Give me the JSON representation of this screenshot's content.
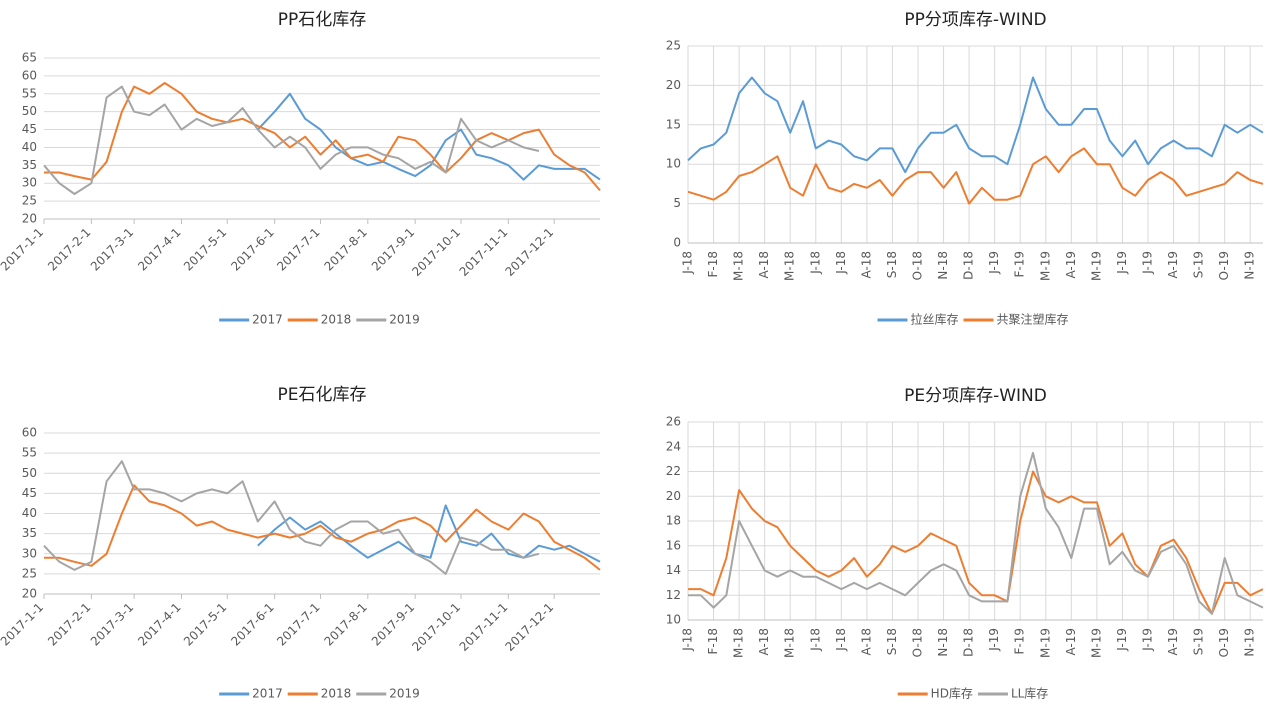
{
  "chart_data": [
    {
      "type": "line",
      "title": "PP石化库存",
      "x": [
        "2017-1-1",
        "2017-1-11",
        "2017-1-21",
        "2017-2-1",
        "2017-2-11",
        "2017-2-21",
        "2017-3-1",
        "2017-3-11",
        "2017-3-21",
        "2017-4-1",
        "2017-4-11",
        "2017-4-21",
        "2017-5-1",
        "2017-5-11",
        "2017-5-21",
        "2017-6-1",
        "2017-6-11",
        "2017-6-21",
        "2017-7-1",
        "2017-7-11",
        "2017-7-21",
        "2017-8-1",
        "2017-8-11",
        "2017-8-21",
        "2017-9-1",
        "2017-9-11",
        "2017-9-21",
        "2017-10-1",
        "2017-10-11",
        "2017-10-21",
        "2017-11-1",
        "2017-11-11",
        "2017-11-21",
        "2017-12-1",
        "2017-12-11",
        "2017-12-21",
        "2017-12-31"
      ],
      "xlim": [
        "2017-1-1",
        "2017-12-31"
      ],
      "xticks": [
        "2017-1-1",
        "2017-2-1",
        "2017-3-1",
        "2017-4-1",
        "2017-5-1",
        "2017-6-1",
        "2017-7-1",
        "2017-8-1",
        "2017-9-1",
        "2017-10-1",
        "2017-11-1",
        "2017-12-1"
      ],
      "ylim": [
        20,
        65
      ],
      "yticks": [
        20,
        25,
        30,
        35,
        40,
        45,
        50,
        55,
        60,
        65
      ],
      "grid": true,
      "legend": "bottom",
      "series": [
        {
          "name": "2017",
          "color": "#5b9bd5",
          "values": [
            null,
            null,
            null,
            null,
            null,
            null,
            null,
            null,
            null,
            null,
            null,
            null,
            null,
            null,
            45,
            50,
            55,
            48,
            45,
            40,
            37,
            35,
            36,
            34,
            32,
            35,
            42,
            45,
            38,
            37,
            35,
            31,
            35,
            34,
            34,
            34,
            31
          ]
        },
        {
          "name": "2018",
          "color": "#ed7d31",
          "values": [
            33,
            33,
            32,
            31,
            36,
            50,
            57,
            55,
            58,
            55,
            50,
            48,
            47,
            48,
            46,
            44,
            40,
            43,
            38,
            42,
            37,
            38,
            36,
            43,
            42,
            38,
            33,
            37,
            42,
            44,
            42,
            44,
            45,
            38,
            35,
            33,
            28
          ]
        },
        {
          "name": "2019",
          "color": "#a5a5a5",
          "values": [
            35,
            30,
            27,
            30,
            54,
            57,
            50,
            49,
            52,
            45,
            48,
            46,
            47,
            51,
            45,
            40,
            43,
            40,
            34,
            38,
            40,
            40,
            38,
            37,
            34,
            36,
            33,
            48,
            42,
            40,
            42,
            40,
            39,
            null,
            null,
            null,
            null
          ]
        }
      ]
    },
    {
      "type": "line",
      "title": "PP分项库存-WIND",
      "categories": [
        "J-18",
        null,
        "F-18",
        null,
        "M-18",
        null,
        "A-18",
        null,
        "M-18",
        null,
        "J-18",
        null,
        "J-18",
        null,
        "A-18",
        null,
        "S-18",
        null,
        "O-18",
        null,
        "N-18",
        null,
        "D-18",
        null,
        "J-19",
        null,
        "F-19",
        null,
        "M-19",
        null,
        "A-19",
        null,
        "M-19",
        null,
        "J-19",
        null,
        "J-19",
        null,
        "A-19",
        null,
        "S-19",
        null,
        "O-19",
        null,
        "N-19",
        null
      ],
      "ylim": [
        0,
        25
      ],
      "yticks": [
        0,
        5,
        10,
        15,
        20,
        25
      ],
      "grid": true,
      "xgrid": true,
      "legend": "bottom",
      "series": [
        {
          "name": "拉丝库存",
          "color": "#5b9bd5",
          "values": [
            10.5,
            12,
            12.5,
            14,
            19,
            21,
            19,
            18,
            14,
            18,
            12,
            13,
            12.5,
            11,
            10.5,
            12,
            12,
            9,
            12,
            14,
            14,
            15,
            12,
            11,
            11,
            10,
            15,
            21,
            17,
            15,
            15,
            17,
            17,
            13,
            11,
            13,
            10,
            12,
            13,
            12,
            12,
            11,
            15,
            14,
            15,
            14
          ]
        },
        {
          "name": "共聚注塑库存",
          "color": "#ed7d31",
          "values": [
            6.5,
            6,
            5.5,
            6.5,
            8.5,
            9,
            10,
            11,
            7,
            6,
            10,
            7,
            6.5,
            7.5,
            7,
            8,
            6,
            8,
            9,
            9,
            7,
            9,
            5,
            7,
            5.5,
            5.5,
            6,
            10,
            11,
            9,
            11,
            12,
            10,
            10,
            7,
            6,
            8,
            9,
            8,
            6,
            6.5,
            7,
            7.5,
            9,
            8,
            7.5
          ]
        }
      ]
    },
    {
      "type": "line",
      "title": "PE石化库存",
      "x": [
        "2017-1-1",
        "2017-1-11",
        "2017-1-21",
        "2017-2-1",
        "2017-2-11",
        "2017-2-21",
        "2017-3-1",
        "2017-3-11",
        "2017-3-21",
        "2017-4-1",
        "2017-4-11",
        "2017-4-21",
        "2017-5-1",
        "2017-5-11",
        "2017-5-21",
        "2017-6-1",
        "2017-6-11",
        "2017-6-21",
        "2017-7-1",
        "2017-7-11",
        "2017-7-21",
        "2017-8-1",
        "2017-8-11",
        "2017-8-21",
        "2017-9-1",
        "2017-9-11",
        "2017-9-21",
        "2017-10-1",
        "2017-10-11",
        "2017-10-21",
        "2017-11-1",
        "2017-11-11",
        "2017-11-21",
        "2017-12-1",
        "2017-12-11",
        "2017-12-21",
        "2017-12-31"
      ],
      "xlim": [
        "2017-1-1",
        "2017-12-31"
      ],
      "xticks": [
        "2017-1-1",
        "2017-2-1",
        "2017-3-1",
        "2017-4-1",
        "2017-5-1",
        "2017-6-1",
        "2017-7-1",
        "2017-8-1",
        "2017-9-1",
        "2017-10-1",
        "2017-11-1",
        "2017-12-1"
      ],
      "ylim": [
        20,
        60
      ],
      "yticks": [
        20,
        25,
        30,
        35,
        40,
        45,
        50,
        55,
        60
      ],
      "grid": true,
      "legend": "bottom",
      "series": [
        {
          "name": "2017",
          "color": "#5b9bd5",
          "values": [
            null,
            null,
            null,
            null,
            null,
            null,
            null,
            null,
            null,
            null,
            null,
            null,
            null,
            null,
            32,
            36,
            39,
            36,
            38,
            35,
            32,
            29,
            31,
            33,
            30,
            29,
            42,
            33,
            32,
            35,
            30,
            29,
            32,
            31,
            32,
            30,
            28
          ]
        },
        {
          "name": "2018",
          "color": "#ed7d31",
          "values": [
            29,
            29,
            28,
            27,
            30,
            40,
            47,
            43,
            42,
            40,
            37,
            38,
            36,
            35,
            34,
            35,
            34,
            35,
            37,
            34,
            33,
            35,
            36,
            38,
            39,
            37,
            33,
            37,
            41,
            38,
            36,
            40,
            38,
            33,
            31,
            29,
            26
          ]
        },
        {
          "name": "2019",
          "color": "#a5a5a5",
          "values": [
            32,
            28,
            26,
            28,
            48,
            53,
            46,
            46,
            45,
            43,
            45,
            46,
            45,
            48,
            38,
            43,
            36,
            33,
            32,
            36,
            38,
            38,
            35,
            36,
            30,
            28,
            25,
            34,
            33,
            31,
            31,
            29,
            30,
            null,
            null,
            null,
            null
          ]
        }
      ]
    },
    {
      "type": "line",
      "title": "PE分项库存-WIND",
      "categories": [
        "J-18",
        null,
        "F-18",
        null,
        "M-18",
        null,
        "A-18",
        null,
        "M-18",
        null,
        "J-18",
        null,
        "J-18",
        null,
        "A-18",
        null,
        "S-18",
        null,
        "O-18",
        null,
        "N-18",
        null,
        "D-18",
        null,
        "J-19",
        null,
        "F-19",
        null,
        "M-19",
        null,
        "A-19",
        null,
        "M-19",
        null,
        "J-19",
        null,
        "J-19",
        null,
        "A-19",
        null,
        "S-19",
        null,
        "O-19",
        null,
        "N-19",
        null
      ],
      "ylim": [
        10,
        26
      ],
      "yticks": [
        10,
        12,
        14,
        16,
        18,
        20,
        22,
        24,
        26
      ],
      "grid": true,
      "xgrid": true,
      "legend": "bottom",
      "series": [
        {
          "name": "HD库存",
          "color": "#ed7d31",
          "values": [
            12.5,
            12.5,
            12,
            15,
            20.5,
            19,
            18,
            17.5,
            16,
            15,
            14,
            13.5,
            14,
            15,
            13.5,
            14.5,
            16,
            15.5,
            16,
            17,
            16.5,
            16,
            13,
            12,
            12,
            11.5,
            18,
            22,
            20,
            19.5,
            20,
            19.5,
            19.5,
            16,
            17,
            14.5,
            13.5,
            16,
            16.5,
            15,
            12.5,
            10.5,
            13,
            13,
            12,
            12.5
          ]
        },
        {
          "name": "LL库存",
          "color": "#a5a5a5",
          "values": [
            12,
            12,
            11,
            12,
            18,
            16,
            14,
            13.5,
            14,
            13.5,
            13.5,
            13,
            12.5,
            13,
            12.5,
            13,
            12.5,
            12,
            13,
            14,
            14.5,
            14,
            12,
            11.5,
            11.5,
            11.5,
            20,
            23.5,
            19,
            17.5,
            15,
            19,
            19,
            14.5,
            15.5,
            14,
            13.5,
            15.5,
            16,
            14.5,
            11.5,
            10.5,
            15,
            12,
            11.5,
            11
          ]
        }
      ]
    }
  ]
}
